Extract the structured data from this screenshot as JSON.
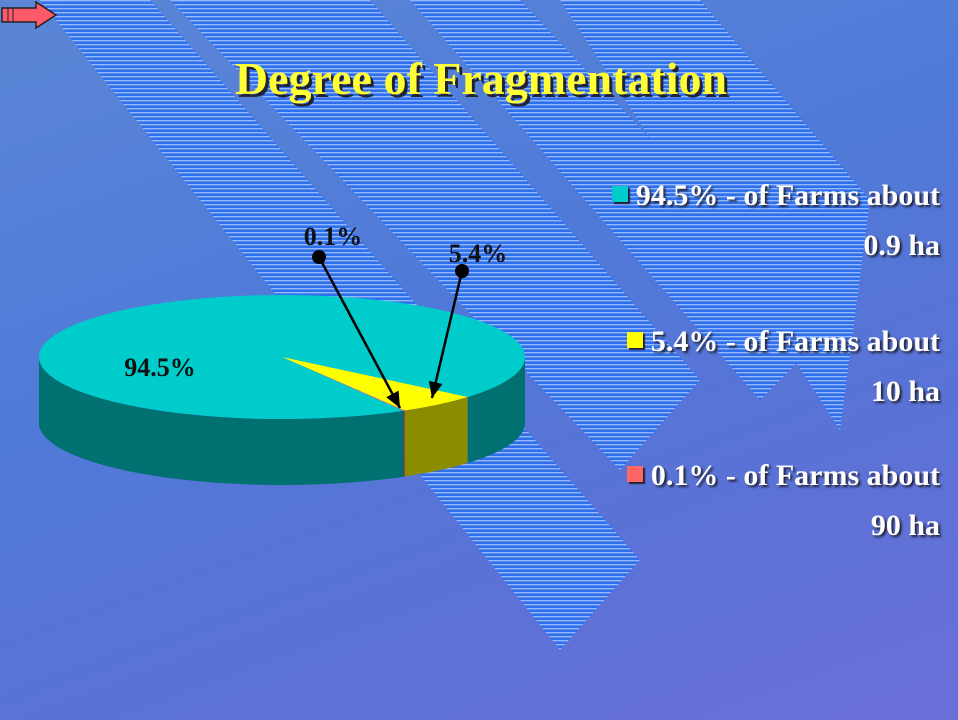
{
  "chart_data": {
    "type": "pie",
    "title": "Degree of Fragmentation",
    "categories": [
      "94.5% - of Farms about 0.9 ha",
      "5.4% - of Farms about 10 ha",
      "0.1% - of Farms about 90 ha"
    ],
    "values": [
      94.5,
      5.4,
      0.1
    ],
    "value_labels": [
      "94.5%",
      "5.4%",
      "0.1%"
    ],
    "colors": [
      "#00cccc",
      "#ffff00",
      "#ff6666"
    ]
  }
}
